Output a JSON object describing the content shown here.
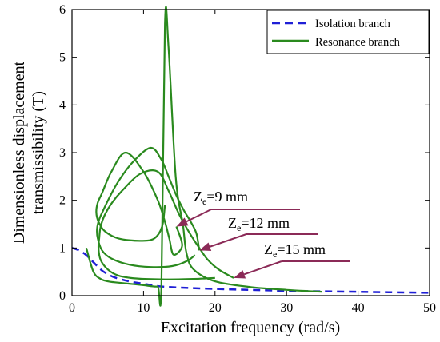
{
  "chart_data": {
    "type": "line",
    "title": "",
    "xlabel": "Excitation frequency (rad/s)",
    "ylabel_line1": "Dimensionless displacement",
    "ylabel_line2": "transmissibility (T)",
    "xlim": [
      0,
      50
    ],
    "ylim": [
      0,
      6
    ],
    "xticks": [
      0,
      10,
      20,
      30,
      40,
      50
    ],
    "yticks": [
      0,
      1,
      2,
      3,
      4,
      5,
      6
    ],
    "grid": false,
    "legend_position": "top-right",
    "legend": [
      {
        "label": "Isolation branch",
        "color": "#1f1fd6",
        "style": "dashed"
      },
      {
        "label": "Resonance branch",
        "color": "#2a8a1e",
        "style": "solid"
      }
    ],
    "annotations": [
      {
        "main": "Z",
        "sub": "e",
        "rest": "=9 mm",
        "arrow_head": [
          14.6,
          1.45
        ]
      },
      {
        "main": "Z",
        "sub": "e",
        "rest": "=12 mm",
        "arrow_head": [
          17.8,
          0.95
        ]
      },
      {
        "main": "Z",
        "sub": "e",
        "rest": "=15 mm",
        "arrow_head": [
          22.6,
          0.37
        ]
      }
    ],
    "series": [
      {
        "name": "Isolation branch",
        "color": "#1f1fd6",
        "dash": true,
        "x": [
          0,
          1,
          2,
          3,
          4,
          5,
          6,
          8,
          10,
          12,
          15,
          20,
          25,
          30,
          35,
          40,
          45,
          50
        ],
        "y": [
          1.0,
          0.95,
          0.85,
          0.7,
          0.55,
          0.45,
          0.38,
          0.3,
          0.25,
          0.2,
          0.17,
          0.14,
          0.12,
          0.1,
          0.09,
          0.08,
          0.07,
          0.06
        ]
      },
      {
        "name": "Resonance branch",
        "color": "#2a8a1e",
        "dash": false,
        "x": [
          2,
          3,
          4,
          5,
          6,
          8,
          10,
          11,
          12,
          12.5,
          13,
          13.5,
          14.5,
          15.5,
          16,
          17,
          20,
          25,
          30,
          35
        ],
        "y": [
          1.0,
          0.5,
          0.35,
          0.3,
          0.28,
          0.25,
          0.22,
          0.2,
          0.19,
          0.2,
          5.7,
          5.2,
          2.5,
          1.5,
          0.9,
          0.55,
          0.3,
          0.18,
          0.12,
          0.08
        ]
      },
      {
        "name": "Resonance branch",
        "color": "#2a8a1e",
        "dash": false,
        "x": [
          14.6,
          15.4,
          14.2,
          13.6,
          13.0,
          12.0,
          10.0,
          7.5,
          5.5,
          4.2,
          3.6,
          3.4,
          3.7,
          4.6,
          6.5,
          9.5,
          11.5,
          12.6,
          13.0
        ],
        "y": [
          1.45,
          1.05,
          0.86,
          1.2,
          1.55,
          2.0,
          2.6,
          3.0,
          2.6,
          2.15,
          1.95,
          1.75,
          1.55,
          1.35,
          1.2,
          1.15,
          1.2,
          1.45,
          1.9
        ]
      },
      {
        "name": "Resonance branch",
        "color": "#2a8a1e",
        "dash": false,
        "x": [
          17.8,
          17.4,
          16.6,
          15.6,
          14.6,
          13.5,
          12.5,
          11.0,
          8.5,
          6.5,
          5.2,
          4.4,
          3.8,
          3.5,
          3.6,
          4.2,
          5.5,
          8.0,
          11.0,
          14.0,
          16.0,
          17.2
        ],
        "y": [
          0.95,
          1.3,
          1.55,
          1.8,
          2.1,
          2.5,
          2.85,
          3.1,
          2.8,
          2.4,
          2.05,
          1.8,
          1.6,
          1.4,
          1.2,
          0.95,
          0.78,
          0.65,
          0.6,
          0.62,
          0.72,
          0.85
        ]
      },
      {
        "name": "Resonance branch",
        "color": "#2a8a1e",
        "dash": false,
        "x": [
          22.6,
          20.5,
          19.0,
          17.8,
          16.5,
          15.0,
          13.5,
          12.0,
          9.5,
          7.0,
          5.6,
          4.6,
          4.0,
          3.8,
          3.7,
          4.0,
          5.0,
          6.5,
          9.0,
          13.0,
          17.0,
          20.0
        ],
        "y": [
          0.37,
          0.55,
          0.75,
          1.0,
          1.3,
          1.7,
          2.2,
          2.6,
          2.55,
          2.2,
          1.95,
          1.7,
          1.45,
          1.2,
          1.0,
          0.75,
          0.55,
          0.42,
          0.36,
          0.34,
          0.35,
          0.37
        ]
      }
    ]
  }
}
